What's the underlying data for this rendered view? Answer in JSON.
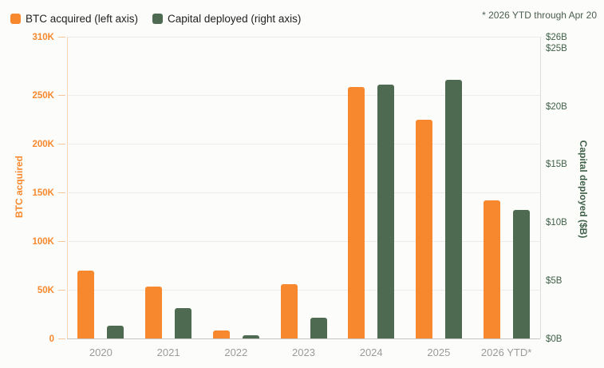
{
  "legend": [
    {
      "label": "BTC acquired (left axis)",
      "color": "#f8882d"
    },
    {
      "label": "Capital deployed (right axis)",
      "color": "#4e6b52"
    }
  ],
  "footnote": "* 2026 YTD through Apr 20",
  "chart_data": {
    "type": "bar",
    "categories": [
      "2020",
      "2021",
      "2022",
      "2023",
      "2024",
      "2025",
      "2026 YTD*"
    ],
    "series": [
      {
        "name": "BTC acquired (left axis)",
        "axis": "left",
        "color": "#f8882d",
        "values": [
          70000,
          53000,
          8000,
          56000,
          258000,
          225000,
          142000
        ]
      },
      {
        "name": "Capital deployed (right axis)",
        "axis": "right",
        "color": "#4e6b52",
        "values": [
          1.1,
          2.6,
          0.3,
          1.8,
          21.9,
          22.3,
          11.1
        ]
      }
    ],
    "left_axis": {
      "label": "BTC acquired",
      "max": 310000,
      "ticks": [
        {
          "value": 0,
          "label": "0"
        },
        {
          "value": 50000,
          "label": "50K"
        },
        {
          "value": 100000,
          "label": "100K"
        },
        {
          "value": 150000,
          "label": "150K"
        },
        {
          "value": 200000,
          "label": "200K"
        },
        {
          "value": 250000,
          "label": "250K"
        },
        {
          "value": 310000,
          "label": "310K"
        }
      ]
    },
    "right_axis": {
      "label": "Capital deployed ($B)",
      "max": 26,
      "ticks": [
        {
          "value": 0,
          "label": "$0B"
        },
        {
          "value": 5,
          "label": "$5B"
        },
        {
          "value": 10,
          "label": "$10B"
        },
        {
          "value": 15,
          "label": "$15B"
        },
        {
          "value": 20,
          "label": "$20B"
        },
        {
          "value": 25,
          "label": "$25B"
        },
        {
          "value": 26,
          "label": "$26B"
        }
      ]
    },
    "layout": {
      "grid": true,
      "legend_position": "top-left"
    }
  }
}
